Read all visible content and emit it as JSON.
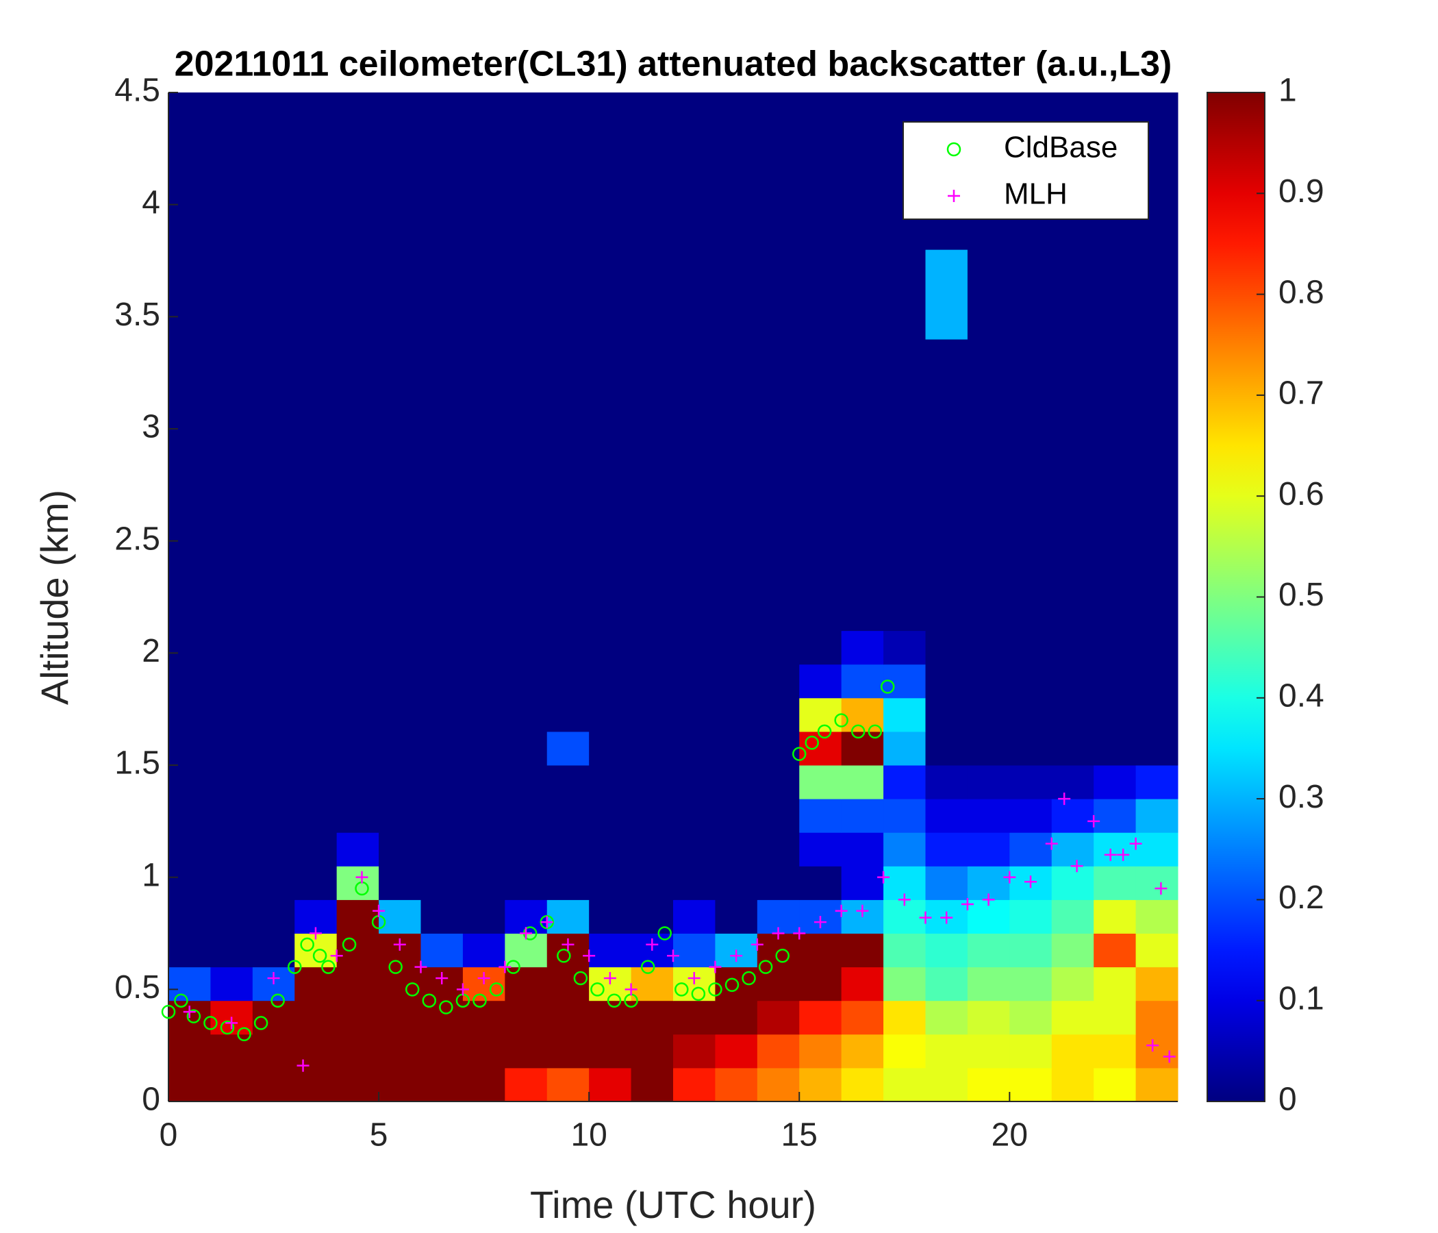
{
  "chart_data": {
    "type": "heatmap",
    "title": "20211011 ceilometer(CL31) attenuated backscatter (a.u.,L3)",
    "x_label": "Time (UTC hour)",
    "y_label": "Altitude (km)",
    "xlim": [
      0,
      24
    ],
    "ylim": [
      0,
      4.5
    ],
    "xticks": [
      0,
      5,
      10,
      15,
      20
    ],
    "yticks": [
      0,
      0.5,
      1,
      1.5,
      2,
      2.5,
      3,
      3.5,
      4,
      4.5
    ],
    "clim": [
      0,
      1
    ],
    "cticks": [
      0,
      0.1,
      0.2,
      0.3,
      0.4,
      0.5,
      0.6,
      0.7,
      0.8,
      0.9,
      1
    ],
    "colormap": "jet",
    "x_edges": [
      0,
      1,
      2,
      3,
      4,
      5,
      6,
      7,
      8,
      9,
      10,
      11,
      12,
      13,
      14,
      15,
      16,
      17,
      18,
      19,
      20,
      21,
      22,
      23,
      24
    ],
    "y_edges": [
      0,
      0.15,
      0.3,
      0.45,
      0.6,
      0.75,
      0.9,
      1.05,
      1.2,
      1.35,
      1.5,
      1.65,
      1.8,
      1.95,
      2.1,
      3.4,
      3.8,
      4.5
    ],
    "z": [
      [
        1,
        1,
        1,
        1,
        1,
        1,
        1,
        1,
        0.85,
        0.8,
        0.9,
        1,
        0.85,
        0.8,
        0.75,
        0.7,
        0.65,
        0.6,
        0.6,
        0.62,
        0.62,
        0.65,
        0.62,
        0.7
      ],
      [
        1,
        1,
        1,
        1,
        1,
        1,
        1,
        1,
        1,
        1,
        1,
        1,
        0.95,
        0.9,
        0.8,
        0.75,
        0.7,
        0.62,
        0.6,
        0.6,
        0.6,
        0.65,
        0.65,
        0.75
      ],
      [
        1,
        0.9,
        1,
        1,
        1,
        1,
        1,
        1,
        1,
        1,
        1,
        1,
        1,
        1,
        0.95,
        0.85,
        0.8,
        0.65,
        0.55,
        0.58,
        0.55,
        0.6,
        0.6,
        0.75
      ],
      [
        0.2,
        0.1,
        0.2,
        1,
        1,
        1,
        1,
        0.8,
        1,
        1,
        0.6,
        0.7,
        0.6,
        1,
        1,
        1,
        0.9,
        0.5,
        0.45,
        0.5,
        0.5,
        0.55,
        0.6,
        0.7
      ],
      [
        0,
        0,
        0,
        0.6,
        1,
        1,
        0.2,
        0.1,
        0.5,
        1,
        0.1,
        0.1,
        0.2,
        0.3,
        1,
        1,
        1,
        0.45,
        0.42,
        0.45,
        0.45,
        0.5,
        0.8,
        0.6
      ],
      [
        0,
        0,
        0,
        0.1,
        1,
        0.3,
        0,
        0,
        0.1,
        0.3,
        0,
        0,
        0.1,
        0,
        0.2,
        0.2,
        0.3,
        0.4,
        0.35,
        0.38,
        0.4,
        0.45,
        0.6,
        0.55
      ],
      [
        0,
        0,
        0,
        0,
        0.5,
        0,
        0,
        0,
        0,
        0,
        0,
        0,
        0,
        0,
        0,
        0,
        0.1,
        0.35,
        0.25,
        0.3,
        0.35,
        0.4,
        0.45,
        0.45
      ],
      [
        0,
        0,
        0,
        0,
        0.1,
        0,
        0,
        0,
        0,
        0,
        0,
        0,
        0,
        0,
        0,
        0.1,
        0.1,
        0.25,
        0.15,
        0.15,
        0.2,
        0.3,
        0.35,
        0.35
      ],
      [
        0,
        0,
        0,
        0,
        0,
        0,
        0,
        0,
        0,
        0,
        0,
        0,
        0,
        0,
        0,
        0.2,
        0.2,
        0.2,
        0.1,
        0.1,
        0.1,
        0.15,
        0.2,
        0.3
      ],
      [
        0,
        0,
        0,
        0,
        0,
        0,
        0,
        0,
        0,
        0,
        0,
        0,
        0,
        0,
        0,
        0.5,
        0.5,
        0.15,
        0.05,
        0.05,
        0.05,
        0.05,
        0.1,
        0.15
      ],
      [
        0,
        0,
        0,
        0,
        0,
        0,
        0,
        0,
        0,
        0.2,
        0,
        0,
        0,
        0,
        0,
        0.9,
        1,
        0.3,
        0,
        0,
        0,
        0,
        0,
        0
      ],
      [
        0,
        0,
        0,
        0,
        0,
        0,
        0,
        0,
        0,
        0,
        0,
        0,
        0,
        0,
        0,
        0.6,
        0.7,
        0.35,
        0,
        0,
        0,
        0,
        0,
        0
      ],
      [
        0,
        0,
        0,
        0,
        0,
        0,
        0,
        0,
        0,
        0,
        0,
        0,
        0,
        0,
        0,
        0.1,
        0.2,
        0.2,
        0,
        0,
        0,
        0,
        0,
        0
      ],
      [
        0,
        0,
        0,
        0,
        0,
        0,
        0,
        0,
        0,
        0,
        0,
        0,
        0,
        0,
        0,
        0,
        0.1,
        0.05,
        0,
        0,
        0,
        0,
        0,
        0
      ],
      [
        0,
        0,
        0,
        0,
        0,
        0,
        0,
        0,
        0,
        0,
        0,
        0,
        0,
        0,
        0,
        0,
        0,
        0,
        0,
        0,
        0,
        0,
        0,
        0
      ],
      [
        0,
        0,
        0,
        0,
        0,
        0,
        0,
        0,
        0,
        0,
        0,
        0,
        0,
        0,
        0,
        0,
        0,
        0,
        0.3,
        0,
        0,
        0,
        0,
        0
      ],
      [
        0,
        0,
        0,
        0,
        0,
        0,
        0,
        0,
        0,
        0,
        0,
        0,
        0,
        0,
        0,
        0,
        0,
        0,
        0,
        0,
        0,
        0,
        0,
        0
      ]
    ],
    "series": [
      {
        "name": "CldBase",
        "marker": "circle",
        "color": "#00ff00",
        "x": [
          0,
          0.3,
          0.6,
          1,
          1.4,
          1.8,
          2.2,
          2.6,
          3,
          3.3,
          3.6,
          3.8,
          4.3,
          4.6,
          5,
          5.4,
          5.8,
          6.2,
          6.6,
          7,
          7.4,
          7.8,
          8.2,
          8.6,
          9,
          9.4,
          9.8,
          10.2,
          10.6,
          11,
          11.4,
          11.8,
          12.2,
          12.6,
          13,
          13.4,
          13.8,
          14.2,
          14.6,
          15,
          15.3,
          15.6,
          16,
          16.4,
          16.8,
          17.1
        ],
        "values": [
          0.4,
          0.45,
          0.38,
          0.35,
          0.33,
          0.3,
          0.35,
          0.45,
          0.6,
          0.7,
          0.65,
          0.6,
          0.7,
          0.95,
          0.8,
          0.6,
          0.5,
          0.45,
          0.42,
          0.45,
          0.45,
          0.5,
          0.6,
          0.75,
          0.8,
          0.65,
          0.55,
          0.5,
          0.45,
          0.45,
          0.6,
          0.75,
          0.5,
          0.48,
          0.5,
          0.52,
          0.55,
          0.6,
          0.65,
          1.55,
          1.6,
          1.65,
          1.7,
          1.65,
          1.65,
          1.85
        ]
      },
      {
        "name": "MLH",
        "marker": "plus",
        "color": "#ff00ff",
        "x": [
          0.5,
          1.5,
          2.5,
          3.2,
          3.5,
          4,
          4.6,
          5,
          5.5,
          6,
          6.5,
          7,
          7.5,
          8,
          8.5,
          9,
          9.5,
          10,
          10.5,
          11,
          11.5,
          12,
          12.5,
          13,
          13.5,
          14,
          14.5,
          15,
          15.5,
          16,
          16.5,
          17,
          17.5,
          18,
          18.5,
          19,
          19.5,
          20,
          20.5,
          21,
          21.3,
          21.6,
          22,
          22.4,
          22.7,
          23,
          23.4,
          23.6,
          23.8
        ],
        "values": [
          0.4,
          0.35,
          0.55,
          0.16,
          0.75,
          0.65,
          1.0,
          0.85,
          0.7,
          0.6,
          0.55,
          0.5,
          0.55,
          0.6,
          0.75,
          0.8,
          0.7,
          0.65,
          0.55,
          0.5,
          0.7,
          0.65,
          0.55,
          0.6,
          0.65,
          0.7,
          0.75,
          0.75,
          0.8,
          0.85,
          0.85,
          1.0,
          0.9,
          0.82,
          0.82,
          0.88,
          0.9,
          1.0,
          0.98,
          1.15,
          1.35,
          1.05,
          1.25,
          1.1,
          1.1,
          1.15,
          0.25,
          0.95,
          0.2
        ]
      }
    ],
    "legend": "upper right"
  }
}
